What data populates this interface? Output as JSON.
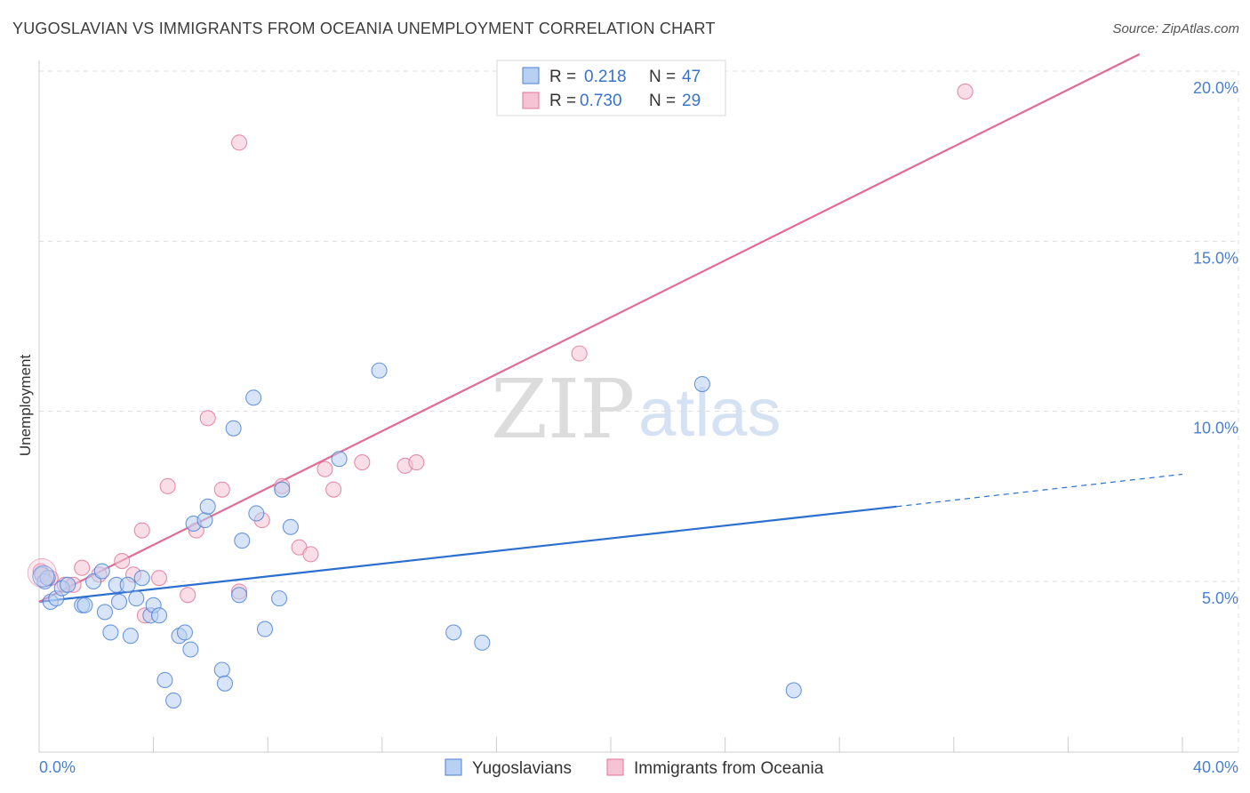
{
  "title": "YUGOSLAVIAN VS IMMIGRANTS FROM OCEANIA UNEMPLOYMENT CORRELATION CHART",
  "source": "Source: ZipAtlas.com",
  "watermark": {
    "zip": "ZIP",
    "atlas": "atlas"
  },
  "colors": {
    "blue": "#4a80d6",
    "blue_fill": "#b8d0f2",
    "pink": "#e0739a",
    "pink_fill": "#f6c3d4",
    "blue_line": "#2a6fd1",
    "pink_line": "#e06b96",
    "grid": "#dddddd",
    "tick_text": "#4a7fd0"
  },
  "legend": {
    "r_label": "R =",
    "n_label": "N =",
    "series": [
      {
        "r": "0.218",
        "n": "47"
      },
      {
        "r": "0.730",
        "n": "29"
      }
    ]
  },
  "chart_data": {
    "type": "scatter",
    "title": "YUGOSLAVIAN VS IMMIGRANTS FROM OCEANIA UNEMPLOYMENT CORRELATION CHART",
    "xlabel": "",
    "ylabel": "Unemployment",
    "xlim": [
      0,
      40
    ],
    "ylim": [
      0,
      20.5
    ],
    "x_tick_labels": [
      "0.0%",
      "40.0%"
    ],
    "y_ticks": [
      {
        "value": 5,
        "label": "5.0%"
      },
      {
        "value": 10,
        "label": "10.0%"
      },
      {
        "value": 15,
        "label": "15.0%"
      },
      {
        "value": 20,
        "label": "20.0%"
      }
    ],
    "grid": true,
    "legend_position": "top-center",
    "series": [
      {
        "name": "Yugoslavians",
        "color": "#4a80d6",
        "r": 0.218,
        "n": 47,
        "trend": {
          "x0": 0,
          "y0": 4.4,
          "x1": 30,
          "y1": 7.2,
          "dashed_to_x": 40,
          "dashed_to_y": 8.15
        },
        "points": [
          [
            0.1,
            5.2
          ],
          [
            0.2,
            5.0
          ],
          [
            0.4,
            4.4
          ],
          [
            0.6,
            4.5
          ],
          [
            0.8,
            4.8
          ],
          [
            1.0,
            4.9
          ],
          [
            1.5,
            4.3
          ],
          [
            1.6,
            4.3
          ],
          [
            1.9,
            5.0
          ],
          [
            2.2,
            5.3
          ],
          [
            2.3,
            4.1
          ],
          [
            2.5,
            3.5
          ],
          [
            2.7,
            4.9
          ],
          [
            2.8,
            4.4
          ],
          [
            3.1,
            4.9
          ],
          [
            3.2,
            3.4
          ],
          [
            3.4,
            4.5
          ],
          [
            3.6,
            5.1
          ],
          [
            3.9,
            4.0
          ],
          [
            4.0,
            4.3
          ],
          [
            4.2,
            4.0
          ],
          [
            4.4,
            2.1
          ],
          [
            4.7,
            1.5
          ],
          [
            4.9,
            3.4
          ],
          [
            5.1,
            3.5
          ],
          [
            5.3,
            3.0
          ],
          [
            5.4,
            6.7
          ],
          [
            5.8,
            6.8
          ],
          [
            5.9,
            7.2
          ],
          [
            6.4,
            2.4
          ],
          [
            6.5,
            2.0
          ],
          [
            6.8,
            9.5
          ],
          [
            7.0,
            4.6
          ],
          [
            7.1,
            6.2
          ],
          [
            7.5,
            10.4
          ],
          [
            7.6,
            7.0
          ],
          [
            7.9,
            3.6
          ],
          [
            8.4,
            4.5
          ],
          [
            8.5,
            7.7
          ],
          [
            8.8,
            6.6
          ],
          [
            10.5,
            8.6
          ],
          [
            11.9,
            11.2
          ],
          [
            14.5,
            3.5
          ],
          [
            15.5,
            3.2
          ],
          [
            23.2,
            10.8
          ],
          [
            26.4,
            1.8
          ],
          [
            0.3,
            5.1
          ]
        ]
      },
      {
        "name": "Immigrants from Oceania",
        "color": "#e0739a",
        "r": 0.73,
        "n": 29,
        "trend": {
          "x0": 0,
          "y0": 4.4,
          "x1": 38.5,
          "y1": 20.5
        },
        "points": [
          [
            0.05,
            5.3
          ],
          [
            0.4,
            5.1
          ],
          [
            0.9,
            4.9
          ],
          [
            1.2,
            4.9
          ],
          [
            1.5,
            5.4
          ],
          [
            2.1,
            5.2
          ],
          [
            2.9,
            5.6
          ],
          [
            3.3,
            5.2
          ],
          [
            3.6,
            6.5
          ],
          [
            3.7,
            4.0
          ],
          [
            4.2,
            5.1
          ],
          [
            4.5,
            7.8
          ],
          [
            5.2,
            4.6
          ],
          [
            5.5,
            6.5
          ],
          [
            5.9,
            9.8
          ],
          [
            6.4,
            7.7
          ],
          [
            7.0,
            17.9
          ],
          [
            7.0,
            4.7
          ],
          [
            7.8,
            6.8
          ],
          [
            8.5,
            7.8
          ],
          [
            9.1,
            6.0
          ],
          [
            9.5,
            5.8
          ],
          [
            10.0,
            8.3
          ],
          [
            10.3,
            7.7
          ],
          [
            11.3,
            8.5
          ],
          [
            12.8,
            8.4
          ],
          [
            13.2,
            8.5
          ],
          [
            18.9,
            11.7
          ],
          [
            32.4,
            19.4
          ]
        ]
      }
    ]
  },
  "bottom_legend": [
    {
      "label": "Yugoslavians"
    },
    {
      "label": "Immigrants from Oceania"
    }
  ]
}
